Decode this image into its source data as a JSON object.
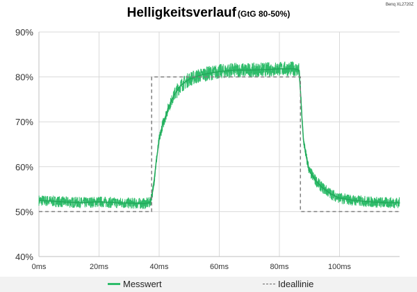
{
  "chart_data": {
    "type": "line",
    "title": "Helligkeitsverlauf",
    "subtitle": "(GtG 80-50%)",
    "watermark": "Benq XL2720Z",
    "xlabel": "",
    "ylabel": "",
    "xlim": [
      0,
      120
    ],
    "ylim": [
      40,
      90
    ],
    "x_ticks": [
      "0ms",
      "20ms",
      "40ms",
      "60ms",
      "80ms",
      "100ms"
    ],
    "y_ticks": [
      "40%",
      "50%",
      "60%",
      "70%",
      "80%",
      "90%"
    ],
    "grid": true,
    "legend": "bottom",
    "series": [
      {
        "name": "Messwert",
        "color": "#2ebc6a",
        "style": "solid",
        "x": [
          0,
          5,
          10,
          15,
          20,
          25,
          30,
          35,
          37,
          38,
          39,
          40,
          41,
          42,
          43,
          44,
          45,
          47,
          50,
          53,
          55,
          60,
          65,
          70,
          75,
          80,
          85,
          86.5,
          87,
          87.5,
          88,
          89,
          90,
          92,
          94,
          97,
          100,
          105,
          110,
          115,
          120
        ],
        "y": [
          52.5,
          52.3,
          52.1,
          52.0,
          52.2,
          52.0,
          51.9,
          51.8,
          52.0,
          55,
          61,
          66,
          69,
          71,
          73,
          74.5,
          76,
          78,
          79.5,
          80.2,
          80.6,
          81.2,
          81.5,
          81.5,
          81.6,
          81.8,
          81.8,
          81.5,
          77,
          71,
          66,
          62,
          59,
          57,
          55.5,
          54,
          53,
          52.5,
          52.2,
          52.0,
          52.0
        ]
      },
      {
        "name": "Ideallinie",
        "color": "#808080",
        "style": "dashed",
        "x": [
          0,
          37.5,
          37.5,
          87,
          87,
          120
        ],
        "y": [
          50,
          50,
          80,
          80,
          50,
          50
        ]
      }
    ]
  }
}
